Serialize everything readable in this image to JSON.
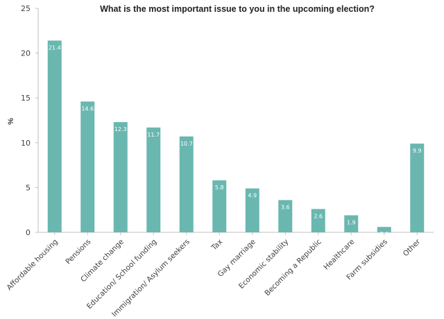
{
  "chart_data": {
    "type": "bar",
    "title": "What is the most important issue to you in the upcoming election?",
    "ylabel": "%",
    "xlabel": "",
    "ylim": [
      0,
      25
    ],
    "yticks": [
      0,
      5,
      10,
      15,
      20,
      25
    ],
    "categories": [
      "Affordable housing",
      "Pensions",
      "Climate change",
      "Education/ School funding",
      "Immigration/ Asylum seekers",
      "Tax",
      "Gay marriage",
      "Economic stability",
      "Becoming a Republic",
      "Healthcare",
      "Farm subsidies",
      "Other"
    ],
    "values": [
      21.4,
      14.6,
      12.3,
      11.7,
      10.7,
      5.8,
      4.9,
      3.6,
      2.6,
      1.9,
      0.6,
      9.9
    ],
    "data_labels": [
      "21.4",
      "14.6",
      "12.3",
      "11.7",
      "10.7",
      "5.8",
      "4.9",
      "3.6",
      "2.6",
      "1.9",
      "0.6",
      "9.9"
    ],
    "grid": false,
    "legend": "none",
    "bar_color": "#6ab7b0"
  }
}
